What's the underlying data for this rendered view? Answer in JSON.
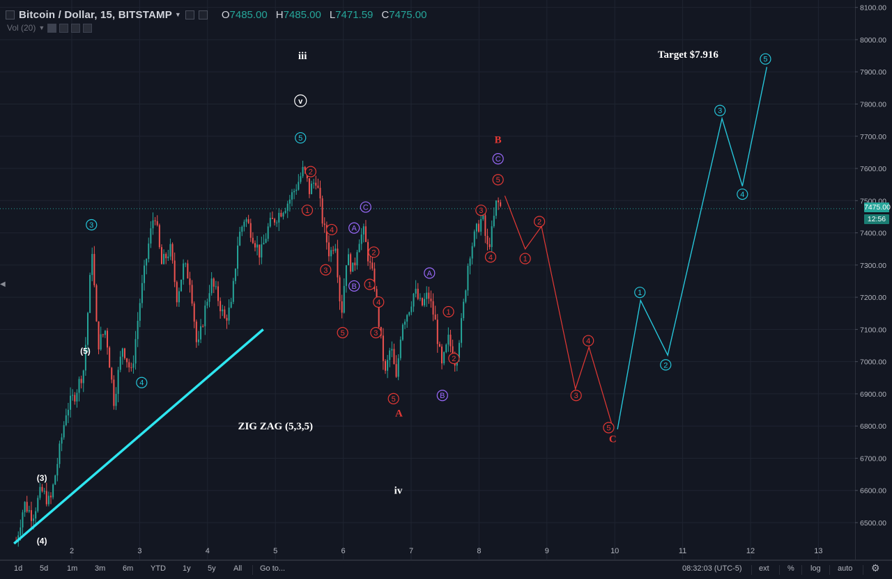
{
  "header": {
    "title": "Bitcoin / Dollar, 15, BITSTAMP",
    "ohlc": [
      {
        "k": "O",
        "v": "7485.00"
      },
      {
        "k": "H",
        "v": "7485.00"
      },
      {
        "k": "L",
        "v": "7471.59"
      },
      {
        "k": "C",
        "v": "7475.00"
      }
    ],
    "volume_label": "Vol (20)"
  },
  "last_price": "7475.00",
  "countdown": "12:56",
  "colors": {
    "background": "#131722",
    "up": "#26a69a",
    "down": "#ef5350",
    "cyan_wave": "#26c6da",
    "red_wave": "#e53935",
    "purple": "#9c6bff",
    "trendline": "#2ee6f0"
  },
  "bottom_bar": {
    "ranges": [
      "1d",
      "5d",
      "1m",
      "3m",
      "6m",
      "YTD",
      "1y",
      "5y",
      "All",
      "Go to..."
    ],
    "clock": "08:32:03 (UTC-5)",
    "options": [
      "ext",
      "%",
      "log",
      "auto"
    ]
  },
  "chart_data": {
    "type": "candlestick",
    "symbol": "Bitcoin / Dollar, 15, BITSTAMP",
    "x_ticks": [
      "2",
      "3",
      "4",
      "5",
      "6",
      "7",
      "8",
      "9",
      "10",
      "11",
      "12",
      "13"
    ],
    "y_ticks": [
      "6500.00",
      "6600.00",
      "6700.00",
      "6800.00",
      "6900.00",
      "7000.00",
      "7100.00",
      "7200.00",
      "7300.00",
      "7400.00",
      "7500.00",
      "7600.00",
      "7700.00",
      "7800.00",
      "7900.00",
      "8000.00",
      "8100.00"
    ],
    "ylim": [
      6430,
      8110
    ],
    "xlim": [
      1.15,
      13.55
    ],
    "price_path": [
      [
        1.18,
        6440
      ],
      [
        1.3,
        6560
      ],
      [
        1.42,
        6520
      ],
      [
        1.55,
        6600
      ],
      [
        1.68,
        6560
      ],
      [
        1.8,
        6700
      ],
      [
        1.92,
        6850
      ],
      [
        2.05,
        6900
      ],
      [
        2.18,
        6980
      ],
      [
        2.3,
        7350
      ],
      [
        2.38,
        7050
      ],
      [
        2.5,
        7100
      ],
      [
        2.62,
        6880
      ],
      [
        2.75,
        7050
      ],
      [
        2.88,
        6960
      ],
      [
        3.0,
        7180
      ],
      [
        3.12,
        7350
      ],
      [
        3.22,
        7470
      ],
      [
        3.32,
        7300
      ],
      [
        3.45,
        7350
      ],
      [
        3.55,
        7200
      ],
      [
        3.65,
        7300
      ],
      [
        3.75,
        7250
      ],
      [
        3.85,
        7030
      ],
      [
        3.95,
        7150
      ],
      [
        4.05,
        7250
      ],
      [
        4.15,
        7200
      ],
      [
        4.25,
        7130
      ],
      [
        4.35,
        7170
      ],
      [
        4.45,
        7380
      ],
      [
        4.55,
        7450
      ],
      [
        4.65,
        7400
      ],
      [
        4.78,
        7330
      ],
      [
        4.9,
        7420
      ],
      [
        5.05,
        7460
      ],
      [
        5.2,
        7500
      ],
      [
        5.32,
        7550
      ],
      [
        5.42,
        7600
      ],
      [
        5.5,
        7530
      ],
      [
        5.6,
        7570
      ],
      [
        5.7,
        7430
      ],
      [
        5.8,
        7330
      ],
      [
        5.88,
        7380
      ],
      [
        5.97,
        7140
      ],
      [
        6.05,
        7330
      ],
      [
        6.15,
        7280
      ],
      [
        6.22,
        7380
      ],
      [
        6.3,
        7400
      ],
      [
        6.38,
        7310
      ],
      [
        6.46,
        7240
      ],
      [
        6.55,
        7070
      ],
      [
        6.62,
        6960
      ],
      [
        6.7,
        7050
      ],
      [
        6.78,
        6940
      ],
      [
        6.86,
        7120
      ],
      [
        6.96,
        7160
      ],
      [
        7.05,
        7220
      ],
      [
        7.15,
        7170
      ],
      [
        7.25,
        7210
      ],
      [
        7.35,
        7130
      ],
      [
        7.45,
        6980
      ],
      [
        7.55,
        7070
      ],
      [
        7.65,
        7000
      ],
      [
        7.75,
        7130
      ],
      [
        7.85,
        7330
      ],
      [
        7.95,
        7400
      ],
      [
        8.05,
        7450
      ],
      [
        8.12,
        7350
      ],
      [
        8.18,
        7390
      ],
      [
        8.26,
        7500
      ],
      [
        8.33,
        7475
      ]
    ],
    "projection_red": [
      [
        8.38,
        7515
      ],
      [
        8.68,
        7350
      ],
      [
        8.92,
        7420
      ],
      [
        9.42,
        6915
      ],
      [
        9.62,
        7045
      ],
      [
        9.95,
        6810
      ]
    ],
    "projection_cyan": [
      [
        10.04,
        6790
      ],
      [
        10.38,
        7190
      ],
      [
        10.78,
        7020
      ],
      [
        11.58,
        7755
      ],
      [
        11.88,
        7545
      ],
      [
        12.24,
        7915
      ]
    ],
    "trendline": [
      [
        1.15,
        6435
      ],
      [
        4.82,
        7100
      ]
    ],
    "annotations": [
      {
        "text": "iii",
        "x": 5.4,
        "y": 7950,
        "style": "plain-white"
      },
      {
        "text": "v",
        "x": 5.37,
        "y": 7810,
        "style": "circle-white"
      },
      {
        "text": "5",
        "x": 5.37,
        "y": 7695,
        "style": "circle-cyan"
      },
      {
        "text": "3",
        "x": 2.29,
        "y": 7425,
        "style": "circle-cyan"
      },
      {
        "text": "(5)",
        "x": 2.2,
        "y": 7035,
        "style": "plain-white"
      },
      {
        "text": "4",
        "x": 3.03,
        "y": 6935,
        "style": "circle-cyan"
      },
      {
        "text": "(3)",
        "x": 1.56,
        "y": 6640,
        "style": "plain-white"
      },
      {
        "text": "(4)",
        "x": 1.56,
        "y": 6445,
        "style": "plain-white"
      },
      {
        "text": "ZIG ZAG (5,3,5)",
        "x": 5.0,
        "y": 6800,
        "style": "big-white"
      },
      {
        "text": "2",
        "x": 5.52,
        "y": 7590,
        "style": "circle-red"
      },
      {
        "text": "1",
        "x": 5.47,
        "y": 7470,
        "style": "circle-red"
      },
      {
        "text": "4",
        "x": 5.83,
        "y": 7410,
        "style": "circle-red"
      },
      {
        "text": "3",
        "x": 5.74,
        "y": 7285,
        "style": "circle-red"
      },
      {
        "text": "5",
        "x": 5.99,
        "y": 7090,
        "style": "circle-red"
      },
      {
        "text": "A",
        "x": 6.16,
        "y": 7415,
        "style": "circle-purple"
      },
      {
        "text": "B",
        "x": 6.16,
        "y": 7235,
        "style": "circle-purple"
      },
      {
        "text": "C",
        "x": 6.33,
        "y": 7480,
        "style": "circle-purple"
      },
      {
        "text": "2",
        "x": 6.45,
        "y": 7340,
        "style": "circle-red"
      },
      {
        "text": "1",
        "x": 6.39,
        "y": 7240,
        "style": "circle-red"
      },
      {
        "text": "4",
        "x": 6.52,
        "y": 7185,
        "style": "circle-red"
      },
      {
        "text": "3",
        "x": 6.48,
        "y": 7090,
        "style": "circle-red"
      },
      {
        "text": "5",
        "x": 6.74,
        "y": 6885,
        "style": "circle-red"
      },
      {
        "text": "A",
        "x": 6.82,
        "y": 6840,
        "style": "bold-red"
      },
      {
        "text": "A",
        "x": 7.27,
        "y": 7275,
        "style": "circle-purple"
      },
      {
        "text": "B",
        "x": 7.46,
        "y": 6895,
        "style": "circle-purple"
      },
      {
        "text": "1",
        "x": 7.55,
        "y": 7155,
        "style": "circle-red"
      },
      {
        "text": "2",
        "x": 7.63,
        "y": 7010,
        "style": "circle-red"
      },
      {
        "text": "3",
        "x": 8.03,
        "y": 7470,
        "style": "circle-red"
      },
      {
        "text": "4",
        "x": 8.17,
        "y": 7325,
        "style": "circle-red"
      },
      {
        "text": "5",
        "x": 8.28,
        "y": 7565,
        "style": "circle-red"
      },
      {
        "text": "C",
        "x": 8.28,
        "y": 7630,
        "style": "circle-purple"
      },
      {
        "text": "B",
        "x": 8.28,
        "y": 7690,
        "style": "bold-red"
      },
      {
        "text": "1",
        "x": 8.68,
        "y": 7320,
        "style": "circle-red"
      },
      {
        "text": "2",
        "x": 8.89,
        "y": 7435,
        "style": "circle-red"
      },
      {
        "text": "3",
        "x": 9.43,
        "y": 6895,
        "style": "circle-red"
      },
      {
        "text": "4",
        "x": 9.61,
        "y": 7065,
        "style": "circle-red"
      },
      {
        "text": "5",
        "x": 9.91,
        "y": 6795,
        "style": "circle-red"
      },
      {
        "text": "C",
        "x": 9.97,
        "y": 6760,
        "style": "bold-red"
      },
      {
        "text": "iv",
        "x": 6.81,
        "y": 6600,
        "style": "plain-white"
      },
      {
        "text": "1",
        "x": 10.37,
        "y": 7215,
        "style": "circle-cyan"
      },
      {
        "text": "2",
        "x": 10.75,
        "y": 6990,
        "style": "circle-cyan"
      },
      {
        "text": "3",
        "x": 11.55,
        "y": 7780,
        "style": "circle-cyan"
      },
      {
        "text": "4",
        "x": 11.88,
        "y": 7520,
        "style": "circle-cyan"
      },
      {
        "text": "5",
        "x": 12.22,
        "y": 7940,
        "style": "circle-cyan"
      },
      {
        "text": "Target $7.916",
        "x": 11.08,
        "y": 7955,
        "style": "big-white"
      }
    ]
  }
}
